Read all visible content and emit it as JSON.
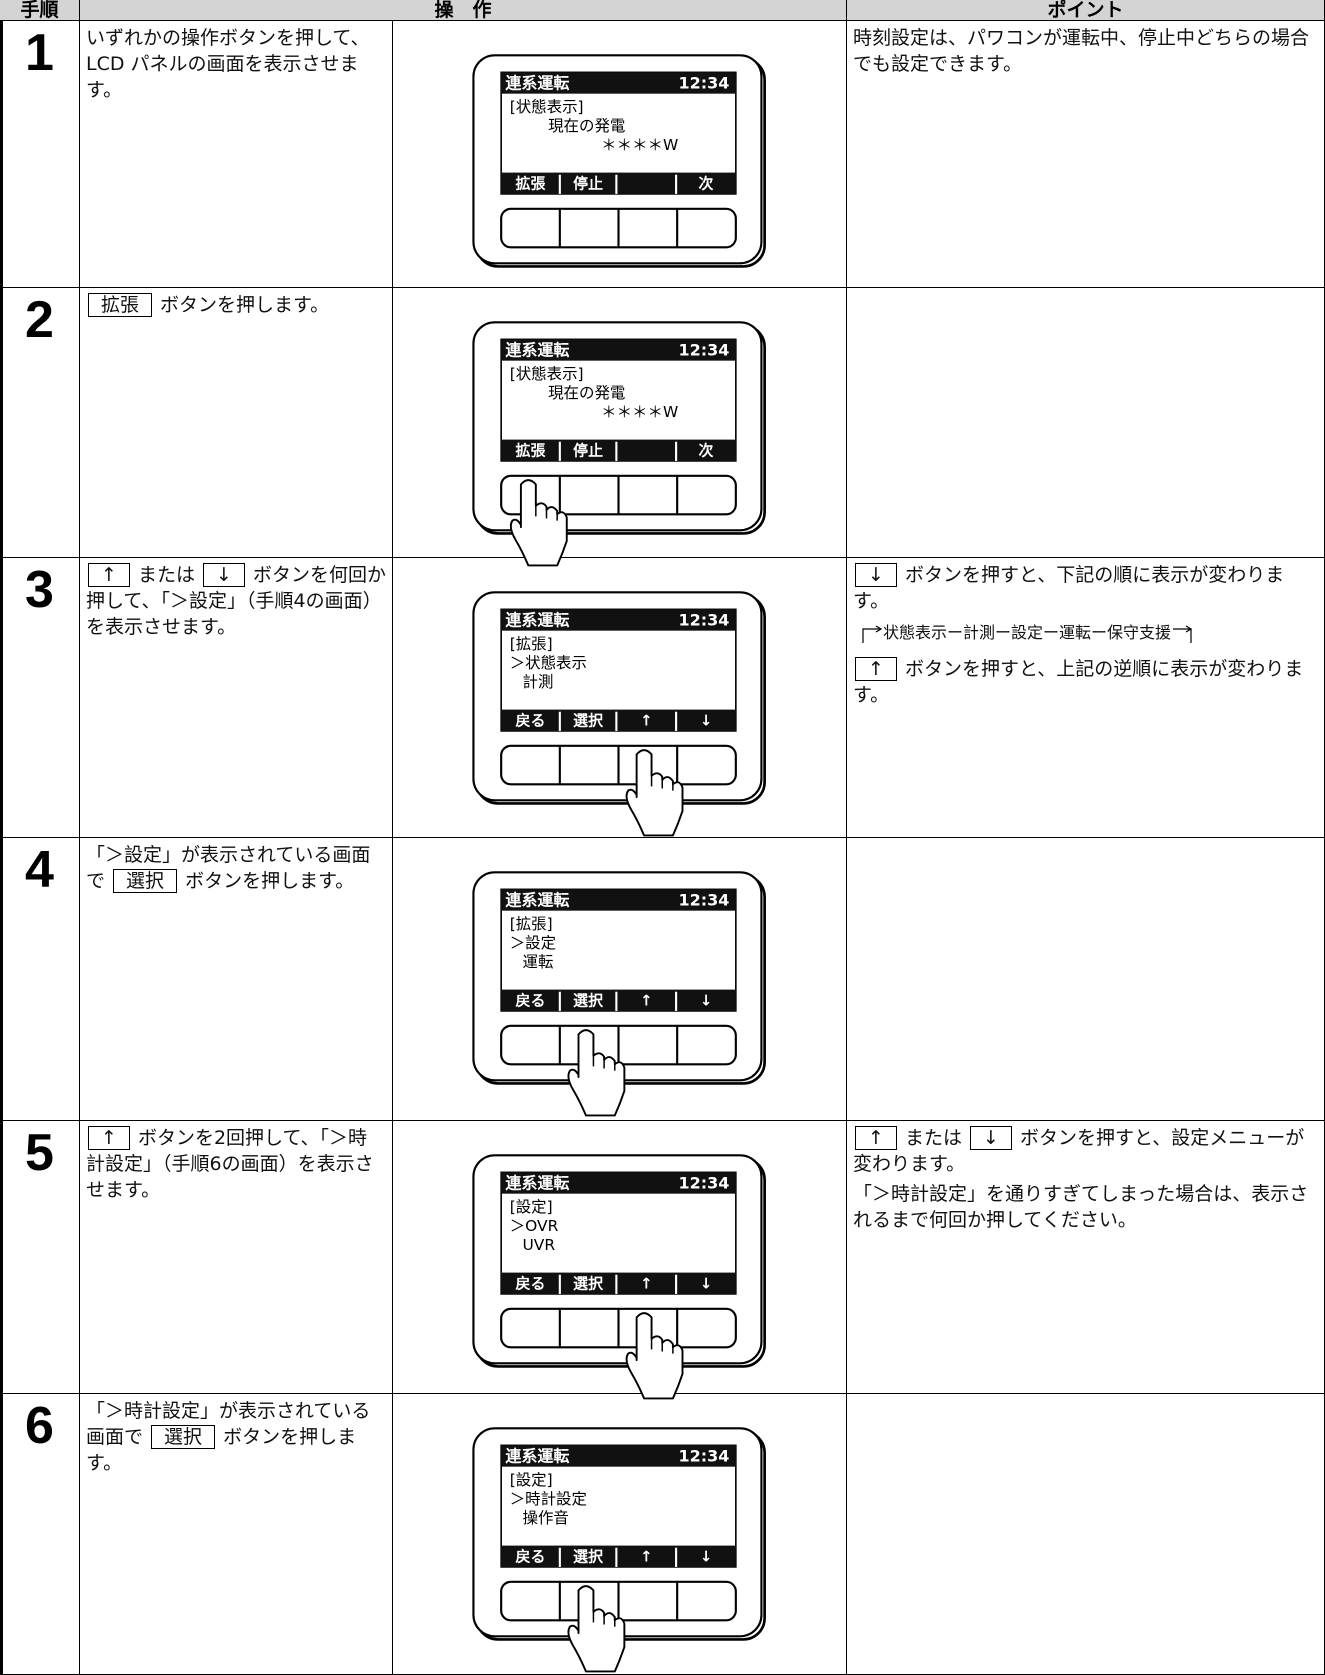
{
  "header": {
    "step": "手順",
    "operation": "操　作",
    "point": "ポイント"
  },
  "rows": [
    {
      "step": "1",
      "instruction": [
        [
          {
            "text": "いずれかの操作ボタンを押して、LCD パネルの画面を表示させます。"
          }
        ]
      ],
      "screen": {
        "title": "連系運転",
        "time": "12:34",
        "lines": [
          "[状態表示]",
          "現在の発電",
          "＊＊＊＊W"
        ],
        "softkeys": [
          "拡張",
          "停止",
          null,
          "次"
        ]
      },
      "point": [
        [
          {
            "text": "時刻設定は、パワコンが運転中、停止中どちらの場合でも設定できます。"
          }
        ]
      ]
    },
    {
      "step": "2",
      "instruction": [
        [
          {
            "key": "拡張"
          },
          {
            "text": " ボタンを押します。"
          }
        ]
      ],
      "screen": {
        "title": "連系運転",
        "time": "12:34",
        "lines": [
          "[状態表示]",
          "現在の発電",
          "＊＊＊＊W"
        ],
        "softkeys": [
          "拡張",
          "停止",
          null,
          "次"
        ]
      }
    },
    {
      "step": "3",
      "instruction": [
        [
          {
            "key": "↑"
          },
          {
            "text": " または "
          },
          {
            "key": "↓"
          },
          {
            "text": " ボタンを何回か押して、「＞設定」（手順4の画面）を表示させます。"
          }
        ]
      ],
      "screen": {
        "title": "連系運転",
        "time": "12:34",
        "lines": [
          "[拡張]",
          "＞状態表示",
          "計測"
        ],
        "softkeys": [
          "戻る",
          "選択",
          "↑",
          "↓"
        ]
      },
      "point": [
        [
          {
            "key": "↓"
          },
          {
            "text": " ボタンを押すと、下記の順に表示が変わります。"
          }
        ],
        [
          {
            "flow": "状態表示ー計測ー設定ー運転ー保守支援"
          }
        ],
        [
          {
            "key": "↑"
          },
          {
            "text": " ボタンを押すと、上記の逆順に表示が変わります。"
          }
        ]
      ]
    },
    {
      "step": "4",
      "instruction": [
        [
          {
            "text": "「＞設定」が表示されている画面で "
          },
          {
            "key": "選択"
          },
          {
            "text": " ボタンを押します。"
          }
        ]
      ],
      "screen": {
        "title": "連系運転",
        "time": "12:34",
        "lines": [
          "[拡張]",
          "＞設定",
          "運転"
        ],
        "softkeys": [
          "戻る",
          "選択",
          "↑",
          "↓"
        ]
      }
    },
    {
      "step": "5",
      "instruction": [
        [
          {
            "key": "↑"
          },
          {
            "text": " ボタンを2回押して、「＞時計設定」（手順6の画面）を表示させます。"
          }
        ]
      ],
      "screen": {
        "title": "連系運転",
        "time": "12:34",
        "lines": [
          "[設定]",
          "＞OVR",
          "UVR"
        ],
        "softkeys": [
          "戻る",
          "選択",
          "↑",
          "↓"
        ]
      },
      "point": [
        [
          {
            "key": "↑"
          },
          {
            "text": " または "
          },
          {
            "key": "↓"
          },
          {
            "text": " ボタンを押すと、設定メニューが変わります。"
          }
        ],
        [
          {
            "text": "「＞時計設定」を通りすぎてしまった場合は、表示されるまで何回か押してください。"
          }
        ]
      ]
    },
    {
      "step": "6",
      "instruction": [
        [
          {
            "text": "「＞時計設定」が表示されている画面で "
          },
          {
            "key": "選択"
          },
          {
            "text": " ボタンを押します。"
          }
        ]
      ],
      "screen": {
        "title": "連系運転",
        "time": "12:34",
        "lines": [
          "[設定]",
          "＞時計設定",
          "操作音"
        ],
        "softkeys": [
          "戻る",
          "選択",
          "↑",
          "↓"
        ]
      }
    }
  ]
}
